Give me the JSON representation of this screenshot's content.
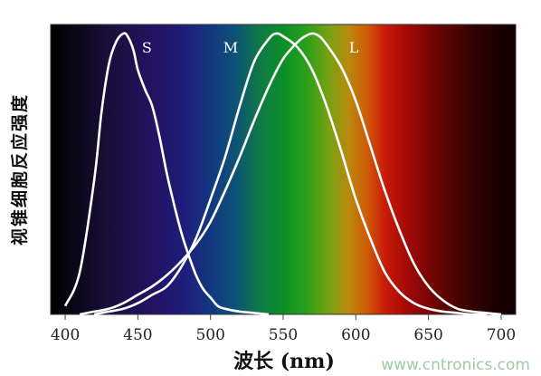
{
  "chart_data": {
    "type": "line",
    "title": "",
    "xlabel": "波长 (nm)",
    "ylabel": "视锥细胞反应强度",
    "xlim": [
      390,
      710
    ],
    "ylim": [
      0,
      1
    ],
    "xticks": [
      400,
      450,
      500,
      550,
      600,
      650,
      700
    ],
    "grid": false,
    "background": "visible-spectrum-gradient",
    "line_color": "#ffffff",
    "series": [
      {
        "name": "S",
        "x": [
          400,
          410,
          420,
          425,
          430,
          435,
          440,
          443,
          447,
          450,
          455,
          460,
          465,
          470,
          475,
          480,
          485,
          490,
          495,
          500,
          505,
          510,
          520,
          530,
          540
        ],
        "y": [
          0.03,
          0.15,
          0.48,
          0.72,
          0.89,
          0.97,
          1.0,
          0.99,
          0.94,
          0.87,
          0.8,
          0.74,
          0.63,
          0.5,
          0.39,
          0.29,
          0.21,
          0.14,
          0.09,
          0.06,
          0.03,
          0.02,
          0.01,
          0.005,
          0.0
        ]
      },
      {
        "name": "M",
        "x": [
          420,
          430,
          440,
          450,
          460,
          470,
          480,
          490,
          500,
          510,
          520,
          530,
          540,
          545,
          550,
          560,
          570,
          580,
          590,
          600,
          610,
          620,
          630,
          640,
          650,
          660,
          670,
          680,
          690
        ],
        "y": [
          0.0,
          0.01,
          0.02,
          0.04,
          0.07,
          0.1,
          0.17,
          0.27,
          0.41,
          0.56,
          0.74,
          0.9,
          0.98,
          1.0,
          0.99,
          0.95,
          0.87,
          0.74,
          0.58,
          0.41,
          0.27,
          0.15,
          0.08,
          0.04,
          0.02,
          0.01,
          0.005,
          0.0,
          0.0
        ]
      },
      {
        "name": "L",
        "x": [
          410,
          420,
          430,
          440,
          450,
          460,
          470,
          480,
          490,
          500,
          510,
          520,
          530,
          540,
          550,
          560,
          565,
          570,
          575,
          580,
          590,
          600,
          610,
          620,
          630,
          640,
          650,
          660,
          670,
          680,
          690,
          700
        ],
        "y": [
          0.0,
          0.01,
          0.02,
          0.04,
          0.07,
          0.1,
          0.14,
          0.19,
          0.25,
          0.33,
          0.44,
          0.56,
          0.69,
          0.81,
          0.91,
          0.97,
          0.99,
          1.0,
          0.99,
          0.96,
          0.88,
          0.76,
          0.6,
          0.44,
          0.3,
          0.18,
          0.1,
          0.05,
          0.02,
          0.01,
          0.005,
          0.0
        ]
      }
    ]
  },
  "watermark": "www.cntronics.com"
}
